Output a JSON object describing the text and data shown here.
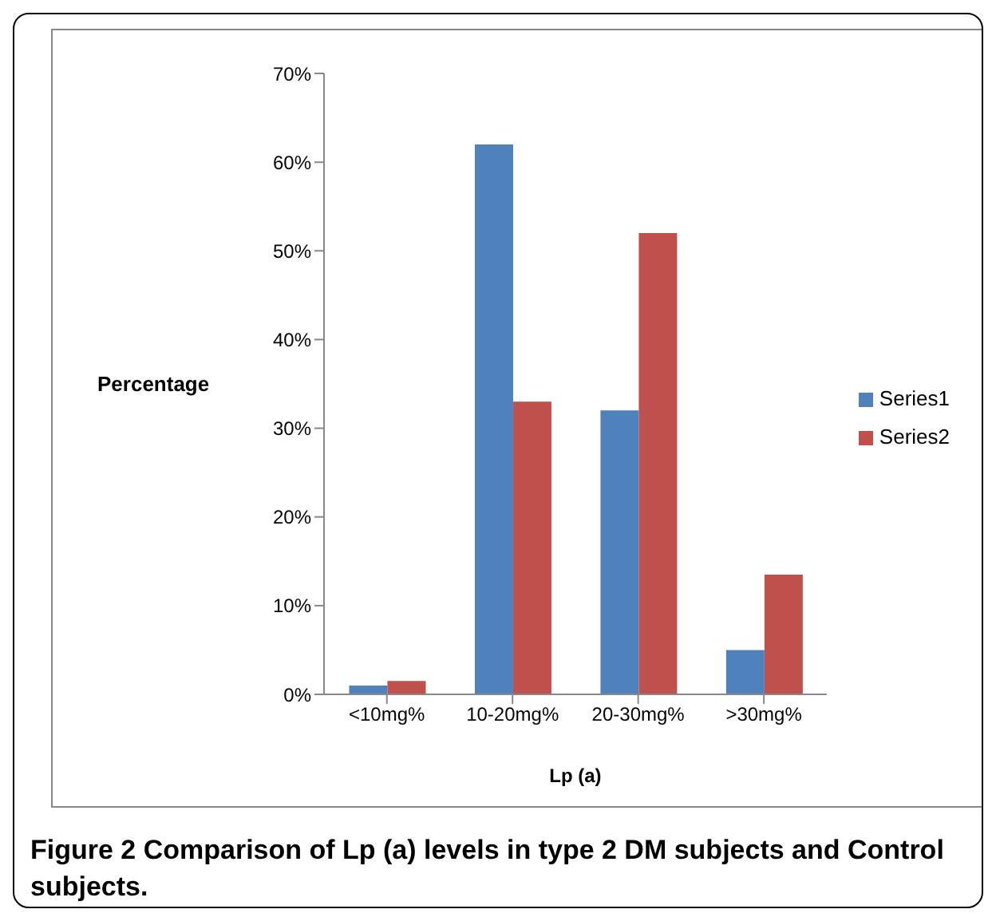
{
  "chart_data": {
    "type": "bar",
    "ylabel": "Percentage",
    "xlabel": "Lp (a)",
    "categories": [
      "<10mg%",
      "10-20mg%",
      "20-30mg%",
      ">30mg%"
    ],
    "series": [
      {
        "name": "Series1",
        "color": "#4f81bd",
        "values": [
          1,
          62,
          32,
          5
        ]
      },
      {
        "name": "Series2",
        "color": "#c0504d",
        "values": [
          1.5,
          33,
          52,
          13.5
        ]
      }
    ],
    "ylim": [
      0,
      70
    ],
    "yticks": [
      {
        "value": 0,
        "label": "0%"
      },
      {
        "value": 10,
        "label": "10%"
      },
      {
        "value": 20,
        "label": "20%"
      },
      {
        "value": 30,
        "label": "30%"
      },
      {
        "value": 40,
        "label": "40%"
      },
      {
        "value": 50,
        "label": "50%"
      },
      {
        "value": 60,
        "label": "60%"
      },
      {
        "value": 70,
        "label": "70%"
      }
    ],
    "grid": false,
    "legend": "right",
    "annotations": [
      "Figure 2 Comparison of Lp (a) levels in type 2 DM subjects and Control subjects."
    ]
  }
}
